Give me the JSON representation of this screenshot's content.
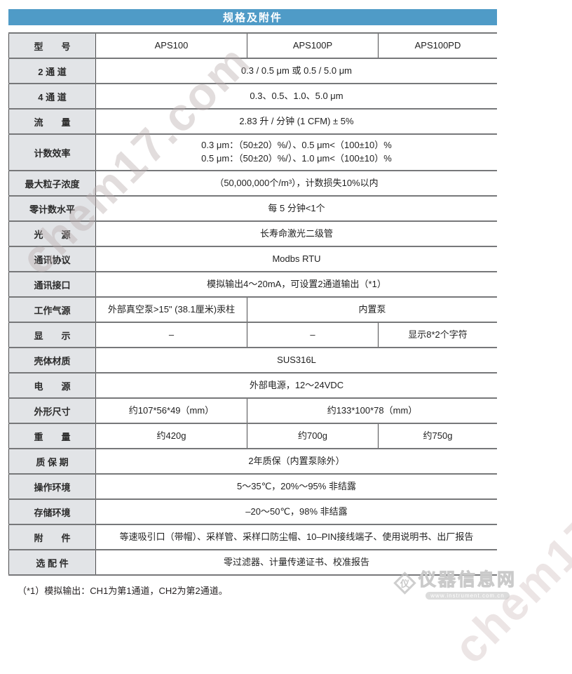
{
  "header": {
    "title": "规格及附件"
  },
  "table": {
    "rows": [
      {
        "label": "型　　号",
        "cells": [
          "APS100",
          "APS100P",
          "APS100PD"
        ]
      },
      {
        "label": "2 通 道",
        "cells": [
          "0.3 / 0.5 μm 或 0.5 / 5.0 μm"
        ]
      },
      {
        "label": "4 通 道",
        "cells": [
          "0.3、0.5、1.0、5.0 μm"
        ]
      },
      {
        "label": "流　　量",
        "cells": [
          "2.83 升 / 分钟 (1 CFM) ± 5%"
        ]
      },
      {
        "label": "计数效率",
        "cells": [
          "0.3 μm：（50±20）%/）、0.5 μm<（100±10）%\n0.5 μm：（50±20）%/）、1.0 μm<（100±10）%"
        ]
      },
      {
        "label": "最大粒子浓度",
        "cells": [
          "（50,000,000个/m³），计数损失10%以内"
        ]
      },
      {
        "label": "零计数水平",
        "cells": [
          "每 5 分钟<1个"
        ]
      },
      {
        "label": "光　　源",
        "cells": [
          "长寿命激光二级管"
        ]
      },
      {
        "label": "通讯协议",
        "cells": [
          "Modbs RTU"
        ]
      },
      {
        "label": "通讯接口",
        "cells": [
          "模拟输出4～20mA，可设置2通道输出（*1）"
        ]
      },
      {
        "label": "工作气源",
        "cells": [
          "外部真空泵>15\" (38.1厘米)汞柱",
          "内置泵"
        ]
      },
      {
        "label": "显　　示",
        "cells": [
          "–",
          "–",
          "显示8*2个字符"
        ]
      },
      {
        "label": "壳体材质",
        "cells": [
          "SUS316L"
        ]
      },
      {
        "label": "电　　源",
        "cells": [
          "外部电源，12～24VDC"
        ]
      },
      {
        "label": "外形尺寸",
        "cells": [
          "约107*56*49（mm）",
          "约133*100*78（mm）"
        ]
      },
      {
        "label": "重　　量",
        "cells": [
          "约420g",
          "约700g",
          "约750g"
        ]
      },
      {
        "label": "质 保 期",
        "cells": [
          "2年质保（内置泵除外）"
        ]
      },
      {
        "label": "操作环境",
        "cells": [
          "5～35℃，20%～95% 非结露"
        ]
      },
      {
        "label": "存储环境",
        "cells": [
          "–20～50℃，98% 非结露"
        ]
      },
      {
        "label": "附　　件",
        "cells": [
          "等速吸引口（带帽）、采样管、采样口防尘帽、10–PIN接线端子、使用说明书、出厂报告"
        ]
      },
      {
        "label": "选 配 件",
        "cells": [
          "零过滤器、计量传递证书、校准报告"
        ]
      }
    ]
  },
  "footnote": "（*1）模拟输出：CH1为第1通道，CH2为第2通道。",
  "watermarks": {
    "diagonal_text": "chem17.com",
    "logo_glyph": "仪",
    "logo_text": "仪器信息网",
    "logo_url": "www.instrument.com.cn"
  },
  "colors": {
    "title_bar": "#4f9bc7",
    "label_bg": "#e2e4e7",
    "border_h": "#77787a",
    "border_v": "#4d4d4f"
  }
}
